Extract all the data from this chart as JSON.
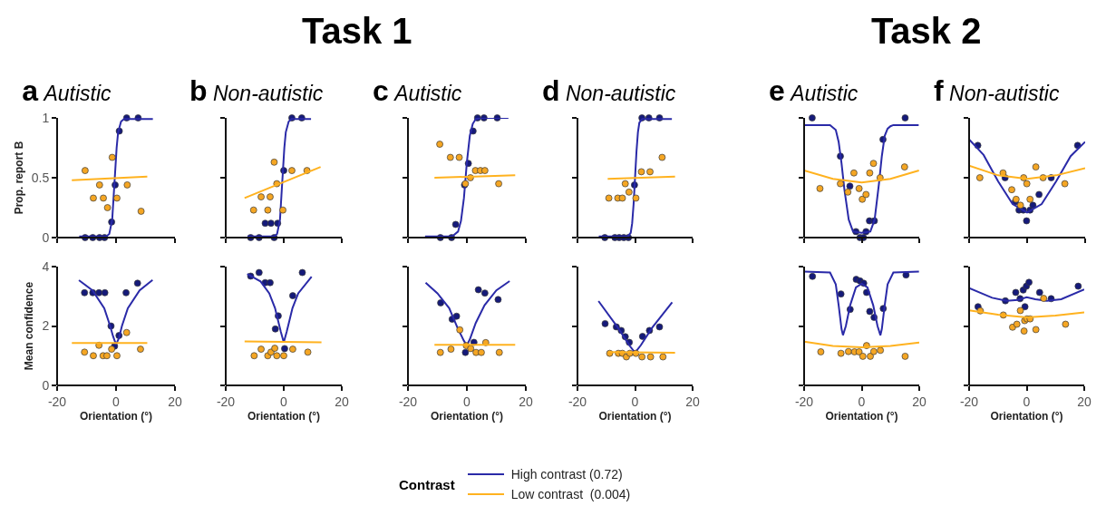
{
  "chart_data": [
    {
      "type": "scatter",
      "title": "a",
      "subtitle": "Autistic",
      "ylabel": "Prop. report B",
      "annotations": [
        "Task 1"
      ],
      "xlim": [
        -20,
        20
      ],
      "xticks": [
        -20,
        0,
        20
      ],
      "ylim": [
        0,
        1
      ],
      "yticks": [
        0,
        0.5,
        1
      ],
      "tick_labels": "y",
      "series": [
        {
          "color": "#151a7a",
          "marker": "circle",
          "x": [
            -10.5,
            -7.9,
            -5.6,
            -3.9,
            -1.5,
            -0.3,
            1.1,
            3.6,
            7.5
          ],
          "values": [
            0,
            0,
            0,
            0,
            0.13,
            0.44,
            0.89,
            1,
            1
          ]
        },
        {
          "type": "line",
          "color": "#2a2aa8",
          "x": [
            -12.5,
            -3.3,
            -2.3,
            -1.3,
            -0.8,
            -0.3,
            0.2,
            0.7,
            1.7,
            2.7,
            12.5
          ],
          "values": [
            0.01,
            0.01,
            0.03,
            0.15,
            0.35,
            0.55,
            0.75,
            0.88,
            0.97,
            0.99,
            0.99
          ]
        },
        {
          "color": "#f5a623",
          "marker": "circle",
          "x": [
            -10.5,
            -7.7,
            -5.6,
            -4.3,
            -2.9,
            -1.3,
            0.3,
            3.8,
            8.5
          ],
          "values": [
            0.56,
            0.33,
            0.44,
            0.33,
            0.25,
            0.67,
            0.33,
            0.44,
            0.22
          ]
        },
        {
          "type": "line",
          "color": "#ffb21f",
          "x": [
            -15,
            10.6
          ],
          "values": [
            0.48,
            0.51
          ]
        }
      ]
    },
    {
      "type": "scatter",
      "title": "b",
      "subtitle": "Non-autistic",
      "xlim": [
        -20,
        20
      ],
      "xticks": [
        -20,
        0,
        20
      ],
      "ylim": [
        0,
        1
      ],
      "yticks": [
        0,
        0.5,
        1
      ],
      "tick_labels": false,
      "series": [
        {
          "color": "#151a7a",
          "marker": "circle",
          "x": [
            -11.4,
            -8.5,
            -6.4,
            -4.4,
            -3.3,
            -2.1,
            0,
            2.8,
            6.2
          ],
          "values": [
            0,
            0,
            0.12,
            0.12,
            0,
            0.12,
            0.56,
            1,
            1
          ]
        },
        {
          "type": "line",
          "color": "#2a2aa8",
          "x": [
            -12.5,
            -3.3,
            -2.3,
            -1.3,
            -0.8,
            -0.3,
            0.2,
            0.7,
            1.7,
            2.7,
            9.4
          ],
          "values": [
            0.01,
            0.01,
            0.03,
            0.15,
            0.35,
            0.55,
            0.75,
            0.88,
            0.97,
            0.99,
            0.99
          ]
        },
        {
          "color": "#f5a623",
          "marker": "circle",
          "x": [
            -10.4,
            -7.8,
            -5.5,
            -4.7,
            -3.3,
            -2.4,
            -0.3,
            2.8,
            8.0
          ],
          "values": [
            0.23,
            0.34,
            0.23,
            0.34,
            0.63,
            0.45,
            0.23,
            0.56,
            0.56
          ]
        },
        {
          "type": "line",
          "color": "#ffb21f",
          "x": [
            -13.5,
            12.7
          ],
          "values": [
            0.33,
            0.59
          ]
        }
      ]
    },
    {
      "type": "scatter",
      "title": "c",
      "subtitle": "Autistic",
      "xlim": [
        -20,
        20
      ],
      "xticks": [
        -20,
        0,
        20
      ],
      "ylim": [
        0,
        1
      ],
      "yticks": [
        0,
        0.5,
        1
      ],
      "tick_labels": false,
      "series": [
        {
          "color": "#151a7a",
          "marker": "circle",
          "x": [
            -9.0,
            -5.2,
            -3.8,
            -0.8,
            0.5,
            2.1,
            3.6,
            5.8,
            10.3
          ],
          "values": [
            0,
            0,
            0.11,
            0.44,
            0.62,
            0.89,
            1,
            1,
            1
          ]
        },
        {
          "type": "line",
          "color": "#2a2aa8",
          "x": [
            -14.2,
            -5,
            -3,
            -2,
            -1,
            -0.5,
            0,
            1,
            2,
            3,
            5,
            14.1
          ],
          "values": [
            0.01,
            0.01,
            0.05,
            0.14,
            0.33,
            0.48,
            0.63,
            0.85,
            0.95,
            0.99,
            1,
            1
          ]
        },
        {
          "color": "#f5a623",
          "marker": "circle",
          "x": [
            -9.2,
            -5.6,
            -2.6,
            -0.5,
            1.2,
            2.9,
            4.6,
            6.1,
            10.8
          ],
          "values": [
            0.78,
            0.67,
            0.67,
            0.45,
            0.5,
            0.56,
            0.56,
            0.56,
            0.45
          ]
        },
        {
          "type": "line",
          "color": "#ffb21f",
          "x": [
            -11,
            16.4
          ],
          "values": [
            0.5,
            0.52
          ]
        }
      ]
    },
    {
      "type": "scatter",
      "title": "d",
      "subtitle": "Non-autistic",
      "xlim": [
        -20,
        20
      ],
      "xticks": [
        -20,
        0,
        20
      ],
      "ylim": [
        0,
        1
      ],
      "yticks": [
        0,
        0.5,
        1
      ],
      "tick_labels": false,
      "series": [
        {
          "color": "#151a7a",
          "marker": "circle",
          "x": [
            -10.5,
            -7.0,
            -5.5,
            -3.9,
            -2.3,
            -0.2,
            2.4,
            4.8,
            8.5
          ],
          "values": [
            0,
            0,
            0,
            0,
            0,
            0.44,
            1,
            1,
            1
          ]
        },
        {
          "type": "line",
          "color": "#2a2aa8",
          "x": [
            -12.6,
            -2.5,
            -1.5,
            -1,
            -0.5,
            0,
            0.5,
            1,
            1.5,
            2.5,
            12.8
          ],
          "values": [
            0.01,
            0.01,
            0.04,
            0.12,
            0.28,
            0.5,
            0.72,
            0.88,
            0.96,
            0.99,
            0.99
          ]
        },
        {
          "color": "#f5a623",
          "marker": "circle",
          "x": [
            -9.1,
            -6.0,
            -4.4,
            -3.4,
            -2.1,
            0.3,
            2.2,
            5.2,
            9.4
          ],
          "values": [
            0.33,
            0.33,
            0.33,
            0.45,
            0.38,
            0.33,
            0.55,
            0.55,
            0.67
          ]
        },
        {
          "type": "line",
          "color": "#ffb21f",
          "x": [
            -9.5,
            13.9
          ],
          "values": [
            0.49,
            0.51
          ]
        }
      ]
    },
    {
      "type": "scatter",
      "title": "e",
      "subtitle": "Autistic",
      "annotations": [
        "Task 2"
      ],
      "xlim": [
        -20,
        20
      ],
      "xticks": [
        -20,
        0,
        20
      ],
      "ylim": [
        0,
        1
      ],
      "yticks": [
        0,
        0.5,
        1
      ],
      "tick_labels": false,
      "series": [
        {
          "color": "#151a7a",
          "marker": "circle",
          "x": [
            -17.2,
            -7.4,
            -4.1,
            -2.0,
            -0.6,
            0.6,
            1.5,
            2.7,
            4.4,
            7.4,
            15.1
          ],
          "values": [
            1,
            0.68,
            0.43,
            0.05,
            0,
            0,
            0.05,
            0.14,
            0.14,
            0.82,
            1
          ]
        },
        {
          "type": "line",
          "color": "#2a2aa8",
          "x": [
            -20,
            -11,
            -9,
            -8,
            -7,
            -6,
            -4.5,
            -3,
            0,
            3,
            4.5,
            6,
            7,
            8,
            9,
            10,
            11,
            19.8
          ],
          "values": [
            0.94,
            0.94,
            0.9,
            0.8,
            0.62,
            0.4,
            0.15,
            0.05,
            0.04,
            0.05,
            0.15,
            0.45,
            0.68,
            0.85,
            0.91,
            0.93,
            0.94,
            0.94
          ]
        },
        {
          "color": "#f5a623",
          "marker": "circle",
          "x": [
            -14.5,
            -7.4,
            -4.8,
            -2.7,
            -0.9,
            0.2,
            1.5,
            2.8,
            4.1,
            6.4,
            14.9
          ],
          "values": [
            0.41,
            0.45,
            0.38,
            0.54,
            0.41,
            0.32,
            0.36,
            0.54,
            0.62,
            0.5,
            0.59
          ]
        },
        {
          "type": "line",
          "color": "#ffb21f",
          "x": [
            -20,
            -10,
            0,
            10,
            19.9
          ],
          "values": [
            0.56,
            0.49,
            0.46,
            0.49,
            0.56
          ]
        }
      ]
    },
    {
      "type": "scatter",
      "title": "f",
      "subtitle": "Non-autistic",
      "xlim": [
        -20,
        20
      ],
      "xticks": [
        -20,
        0,
        20
      ],
      "ylim": [
        0,
        1
      ],
      "yticks": [
        0,
        0.5,
        1
      ],
      "tick_labels": false,
      "series": [
        {
          "color": "#151a7a",
          "marker": "circle",
          "x": [
            -17.0,
            -7.6,
            -4.1,
            -2.8,
            -1.3,
            -0.2,
            1.0,
            2.0,
            4.1,
            8.3,
            17.4
          ],
          "values": [
            0.77,
            0.5,
            0.3,
            0.23,
            0.23,
            0.14,
            0.23,
            0.27,
            0.36,
            0.5,
            0.77
          ]
        },
        {
          "type": "line",
          "color": "#2a2aa8",
          "x": [
            -20,
            -15,
            -10,
            -5,
            0,
            5,
            10,
            15,
            20
          ],
          "values": [
            0.82,
            0.69,
            0.47,
            0.28,
            0.21,
            0.28,
            0.47,
            0.68,
            0.8
          ]
        },
        {
          "color": "#f5a623",
          "marker": "circle",
          "x": [
            -16.3,
            -8.3,
            -5.3,
            -3.8,
            -2.3,
            -1.2,
            -0.1,
            1.0,
            3.0,
            5.5,
            13.0
          ],
          "values": [
            0.5,
            0.54,
            0.4,
            0.32,
            0.27,
            0.5,
            0.45,
            0.32,
            0.59,
            0.5,
            0.45
          ]
        },
        {
          "type": "line",
          "color": "#ffb21f",
          "x": [
            -20,
            -10,
            0,
            10,
            20
          ],
          "values": [
            0.6,
            0.52,
            0.49,
            0.52,
            0.58
          ]
        }
      ]
    },
    {
      "type": "scatter",
      "xlabel": "Orientation (°)",
      "ylabel": "Mean confidence",
      "xlim": [
        -20,
        20
      ],
      "xticks": [
        -20,
        0,
        20
      ],
      "ylim": [
        0,
        4
      ],
      "yticks": [
        0,
        2,
        4
      ],
      "series": [
        {
          "color": "#151a7a",
          "marker": "circle",
          "x": [
            -10.7,
            -7.9,
            -5.8,
            -3.8,
            -1.7,
            -0.5,
            1.0,
            3.4,
            7.3
          ],
          "values": [
            3.12,
            3.12,
            3.12,
            3.12,
            2.0,
            1.32,
            1.68,
            3.12,
            3.44
          ]
        },
        {
          "type": "line",
          "color": "#2a2aa8",
          "x": [
            -12.6,
            -8,
            -4,
            -2,
            -1,
            0,
            1,
            2,
            4,
            8,
            12.4
          ],
          "values": [
            3.54,
            3.2,
            2.6,
            2.0,
            1.65,
            1.38,
            1.6,
            2.0,
            2.6,
            3.2,
            3.55
          ]
        },
        {
          "color": "#f5a623",
          "marker": "circle",
          "x": [
            -10.7,
            -7.7,
            -5.8,
            -4.4,
            -3.1,
            -1.5,
            0.3,
            3.6,
            8.3
          ],
          "values": [
            1.12,
            1.0,
            1.35,
            1.0,
            1.0,
            1.22,
            1.0,
            1.78,
            1.22
          ]
        },
        {
          "type": "line",
          "color": "#ffb21f",
          "x": [
            -15,
            10.6
          ],
          "values": [
            1.43,
            1.43
          ]
        }
      ]
    },
    {
      "type": "scatter",
      "xlabel": "Orientation (°)",
      "xlim": [
        -20,
        20
      ],
      "xticks": [
        -20,
        0,
        20
      ],
      "ylim": [
        0,
        4
      ],
      "yticks": [
        0,
        2,
        4
      ],
      "tick_labels": "x",
      "series": [
        {
          "color": "#151a7a",
          "marker": "circle",
          "x": [
            -11.4,
            -8.5,
            -6.4,
            -4.7,
            -2.9,
            -1.9,
            0.3,
            3.1,
            6.4
          ],
          "values": [
            3.68,
            3.8,
            3.46,
            3.46,
            1.9,
            2.34,
            1.24,
            3.02,
            3.8
          ]
        },
        {
          "type": "line",
          "color": "#2a2aa8",
          "x": [
            -12.6,
            -8,
            -5,
            -3,
            -2,
            -1,
            0,
            1,
            2,
            3,
            5,
            9.6
          ],
          "values": [
            3.75,
            3.5,
            3.1,
            2.6,
            2.2,
            1.8,
            1.45,
            1.8,
            2.2,
            2.6,
            3.1,
            3.66
          ]
        },
        {
          "color": "#f5a623",
          "marker": "circle",
          "x": [
            -10.2,
            -7.8,
            -5.5,
            -4.4,
            -3.1,
            -2.4,
            0,
            3.1,
            8.3
          ],
          "values": [
            1.0,
            1.22,
            1.0,
            1.12,
            1.25,
            1.0,
            1.0,
            1.22,
            1.12
          ]
        },
        {
          "type": "line",
          "color": "#ffb21f",
          "x": [
            -13.5,
            13
          ],
          "values": [
            1.48,
            1.45
          ]
        }
      ]
    },
    {
      "type": "scatter",
      "xlabel": "Orientation (°)",
      "legend_title": "Contrast",
      "legend": "bottom",
      "xlim": [
        -20,
        20
      ],
      "xticks": [
        -20,
        0,
        20
      ],
      "ylim": [
        0,
        4
      ],
      "yticks": [
        0,
        2,
        4
      ],
      "tick_labels": "x",
      "series": [
        {
          "color": "#151a7a",
          "marker": "circle",
          "x": [
            -8.9,
            -5.0,
            -3.5,
            -0.5,
            2.4,
            3.9,
            6.1,
            10.6
          ],
          "values": [
            2.78,
            2.23,
            2.33,
            1.11,
            1.45,
            3.22,
            3.11,
            2.89
          ]
        },
        {
          "type": "line",
          "name": "High contrast (0.72)",
          "color": "#2a2aa8",
          "x": [
            -14,
            -10,
            -6,
            -3,
            -1,
            0,
            1,
            3,
            6,
            10,
            14.5
          ],
          "values": [
            3.46,
            3.1,
            2.6,
            1.9,
            1.5,
            1.35,
            1.55,
            2.1,
            2.7,
            3.2,
            3.51
          ]
        },
        {
          "color": "#f5a623",
          "marker": "circle",
          "x": [
            -9.0,
            -5.4,
            -2.4,
            -0.2,
            1.3,
            3.1,
            4.9,
            6.4,
            11.0
          ],
          "values": [
            1.11,
            1.22,
            1.87,
            1.34,
            1.24,
            1.11,
            1.11,
            1.44,
            1.11
          ]
        },
        {
          "type": "line",
          "name": "Low contrast  (0.004)",
          "color": "#ffb21f",
          "x": [
            -11,
            16.4
          ],
          "values": [
            1.37,
            1.37
          ]
        }
      ]
    },
    {
      "type": "scatter",
      "xlabel": "Orientation (°)",
      "xlim": [
        -20,
        20
      ],
      "xticks": [
        -20,
        0,
        20
      ],
      "ylim": [
        0,
        4
      ],
      "yticks": [
        0,
        2,
        4
      ],
      "tick_labels": "x",
      "series": [
        {
          "color": "#151a7a",
          "marker": "circle",
          "x": [
            -10.4,
            -6.5,
            -4.8,
            -3.4,
            -2.0,
            2.6,
            5.0,
            8.5
          ],
          "values": [
            2.08,
            1.97,
            1.85,
            1.64,
            1.45,
            1.65,
            1.85,
            1.97
          ]
        },
        {
          "type": "line",
          "color": "#2a2aa8",
          "x": [
            -12.7,
            -6,
            -2,
            0,
            2,
            6,
            12.9
          ],
          "values": [
            2.84,
            1.95,
            1.35,
            1.1,
            1.35,
            1.95,
            2.8
          ]
        },
        {
          "color": "#f5a623",
          "marker": "circle",
          "x": [
            -8.8,
            -5.8,
            -4.4,
            -3.0,
            -1.8,
            0.3,
            2.4,
            5.4,
            9.7
          ],
          "values": [
            1.08,
            1.08,
            1.08,
            0.96,
            1.08,
            1.08,
            0.96,
            0.96,
            0.96
          ]
        },
        {
          "type": "line",
          "color": "#ffb21f",
          "x": [
            -9.2,
            13.9
          ],
          "values": [
            1.12,
            1.1
          ]
        }
      ]
    },
    {
      "type": "scatter",
      "xlabel": "Orientation (°)",
      "xlim": [
        -20,
        20
      ],
      "xticks": [
        -20,
        0,
        20
      ],
      "ylim": [
        0,
        4
      ],
      "yticks": [
        0,
        2,
        4
      ],
      "tick_labels": "x",
      "series": [
        {
          "color": "#151a7a",
          "marker": "circle",
          "x": [
            -17.1,
            -7.2,
            -4.0,
            -1.9,
            -0.6,
            0.7,
            1.7,
            2.8,
            4.3,
            7.5,
            15.4
          ],
          "values": [
            3.67,
            3.08,
            2.56,
            3.57,
            3.52,
            3.44,
            3.13,
            2.49,
            2.29,
            2.59,
            3.72
          ]
        },
        {
          "type": "line",
          "color": "#2a2aa8",
          "x": [
            -20,
            -11,
            -9,
            -8,
            -7,
            -6.5,
            -5.5,
            -4,
            -2,
            0,
            2,
            4,
            5.5,
            6.5,
            7,
            8,
            9,
            11,
            19.9
          ],
          "values": [
            3.83,
            3.8,
            3.4,
            2.7,
            1.9,
            1.69,
            2.0,
            2.7,
            3.3,
            3.42,
            3.3,
            2.7,
            2.0,
            1.69,
            1.9,
            2.7,
            3.4,
            3.8,
            3.83
          ]
        },
        {
          "color": "#f5a623",
          "marker": "circle",
          "x": [
            -14.2,
            -7.2,
            -4.6,
            -2.5,
            -0.9,
            0.4,
            1.7,
            3.0,
            4.2,
            6.5,
            15.1
          ],
          "values": [
            1.13,
            1.08,
            1.14,
            1.13,
            1.13,
            0.98,
            1.34,
            0.98,
            1.14,
            1.18,
            0.98
          ]
        },
        {
          "type": "line",
          "color": "#ffb21f",
          "x": [
            -20,
            -10,
            0,
            10,
            20
          ],
          "values": [
            1.47,
            1.33,
            1.28,
            1.33,
            1.44
          ]
        }
      ]
    },
    {
      "type": "scatter",
      "xlabel": "Orientation (°)",
      "xlim": [
        -20,
        20
      ],
      "xticks": [
        -20,
        0,
        20
      ],
      "ylim": [
        0,
        4
      ],
      "yticks": [
        0,
        2,
        4
      ],
      "tick_labels": "x",
      "series": [
        {
          "color": "#151a7a",
          "marker": "circle",
          "x": [
            -16.9,
            -7.4,
            -3.8,
            -2.3,
            -1.2,
            -0.6,
            -0.1,
            0.8,
            4.5,
            8.5,
            17.9
          ],
          "values": [
            2.65,
            2.85,
            3.13,
            2.92,
            3.21,
            2.65,
            3.34,
            3.47,
            3.13,
            2.92,
            3.34
          ]
        },
        {
          "type": "line",
          "color": "#2a2aa8",
          "x": [
            -20,
            -12,
            -7,
            -3,
            0,
            3,
            7,
            12,
            20
          ],
          "values": [
            3.28,
            2.95,
            2.85,
            2.88,
            2.97,
            2.9,
            2.85,
            2.9,
            3.23
          ]
        },
        {
          "color": "#f5a623",
          "marker": "circle",
          "x": [
            -16.1,
            -8.1,
            -4.9,
            -3.4,
            -2.2,
            -0.9,
            -0.7,
            0.1,
            1.2,
            3.2,
            5.9,
            13.5
          ],
          "values": [
            2.51,
            2.37,
            1.96,
            2.06,
            2.52,
            1.83,
            2.18,
            2.24,
            2.24,
            1.88,
            2.93,
            2.06
          ]
        },
        {
          "type": "line",
          "color": "#ffb21f",
          "x": [
            -20,
            -10,
            0,
            10,
            20
          ],
          "values": [
            2.53,
            2.38,
            2.29,
            2.35,
            2.46
          ]
        }
      ]
    }
  ]
}
